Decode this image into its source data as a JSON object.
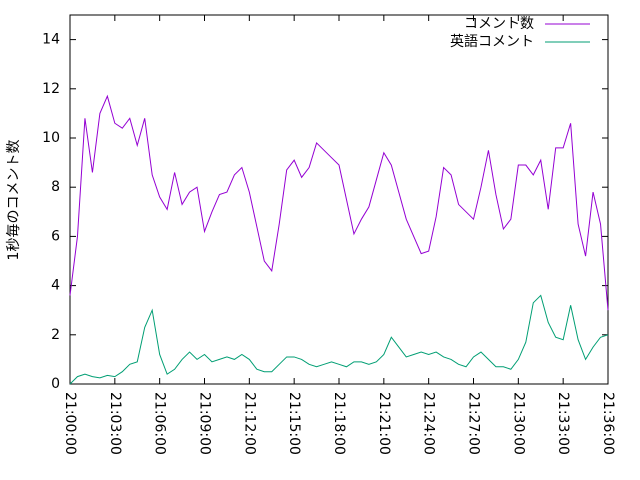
{
  "chart_data": {
    "type": "line",
    "y_label": "1秒毎のコメント数",
    "x": [
      "21:00:00",
      "21:00:30",
      "21:01:00",
      "21:01:30",
      "21:02:00",
      "21:02:30",
      "21:03:00",
      "21:03:30",
      "21:04:00",
      "21:04:30",
      "21:05:00",
      "21:05:30",
      "21:06:00",
      "21:06:30",
      "21:07:00",
      "21:07:30",
      "21:08:00",
      "21:08:30",
      "21:09:00",
      "21:09:30",
      "21:10:00",
      "21:10:30",
      "21:11:00",
      "21:11:30",
      "21:12:00",
      "21:12:30",
      "21:13:00",
      "21:13:30",
      "21:14:00",
      "21:14:30",
      "21:15:00",
      "21:15:30",
      "21:16:00",
      "21:16:30",
      "21:17:00",
      "21:17:30",
      "21:18:00",
      "21:18:30",
      "21:19:00",
      "21:19:30",
      "21:20:00",
      "21:20:30",
      "21:21:00",
      "21:21:30",
      "21:22:00",
      "21:22:30",
      "21:23:00",
      "21:23:30",
      "21:24:00",
      "21:24:30",
      "21:25:00",
      "21:25:30",
      "21:26:00",
      "21:26:30",
      "21:27:00",
      "21:27:30",
      "21:28:00",
      "21:28:30",
      "21:29:00",
      "21:29:30",
      "21:30:00",
      "21:30:30",
      "21:31:00",
      "21:31:30",
      "21:32:00",
      "21:32:30",
      "21:33:00",
      "21:33:30",
      "21:34:00",
      "21:34:30",
      "21:35:00",
      "21:35:30",
      "21:36:00"
    ],
    "series": [
      {
        "name": "コメント数",
        "color": "#9400d3",
        "values": [
          3.6,
          6.0,
          10.8,
          8.6,
          11.0,
          11.7,
          10.6,
          10.4,
          10.8,
          9.7,
          10.8,
          8.5,
          7.6,
          7.1,
          8.6,
          7.3,
          7.8,
          8.0,
          6.2,
          7.0,
          7.7,
          7.8,
          8.5,
          8.8,
          7.8,
          6.4,
          5.0,
          4.6,
          6.5,
          8.7,
          9.1,
          8.4,
          8.8,
          9.8,
          9.5,
          9.2,
          8.9,
          7.5,
          6.1,
          6.7,
          7.2,
          8.3,
          9.4,
          8.9,
          7.8,
          6.7,
          6.0,
          5.3,
          5.4,
          6.8,
          8.8,
          8.5,
          7.3,
          7.0,
          6.7,
          8.0,
          9.5,
          7.7,
          6.3,
          6.7,
          8.9,
          8.9,
          8.5,
          9.1,
          7.1,
          9.6,
          9.6,
          10.6,
          6.5,
          5.2,
          7.8,
          6.5,
          3.0
        ]
      },
      {
        "name": "英語コメント",
        "color": "#009e73",
        "values": [
          0.0,
          0.3,
          0.4,
          0.3,
          0.25,
          0.35,
          0.3,
          0.5,
          0.8,
          0.9,
          2.3,
          3.0,
          1.2,
          0.4,
          0.6,
          1.0,
          1.3,
          1.0,
          1.2,
          0.9,
          1.0,
          1.1,
          1.0,
          1.2,
          1.0,
          0.6,
          0.5,
          0.5,
          0.8,
          1.1,
          1.1,
          1.0,
          0.8,
          0.7,
          0.8,
          0.9,
          0.8,
          0.7,
          0.9,
          0.9,
          0.8,
          0.9,
          1.2,
          1.9,
          1.5,
          1.1,
          1.2,
          1.3,
          1.2,
          1.3,
          1.1,
          1.0,
          0.8,
          0.7,
          1.1,
          1.3,
          1.0,
          0.7,
          0.7,
          0.6,
          1.0,
          1.7,
          3.3,
          3.6,
          2.5,
          1.9,
          1.8,
          3.2,
          1.8,
          1.0,
          1.5,
          1.9,
          2.0
        ]
      }
    ],
    "xlim": [
      "21:00:00",
      "21:36:00"
    ],
    "xticks": [
      "21:00:00",
      "21:03:00",
      "21:06:00",
      "21:09:00",
      "21:12:00",
      "21:15:00",
      "21:18:00",
      "21:21:00",
      "21:24:00",
      "21:27:00",
      "21:30:00",
      "21:33:00",
      "21:36:00"
    ],
    "ylim": [
      0,
      15
    ],
    "yticks": [
      0,
      2,
      4,
      6,
      8,
      10,
      12,
      14
    ],
    "legend": "top-right"
  }
}
